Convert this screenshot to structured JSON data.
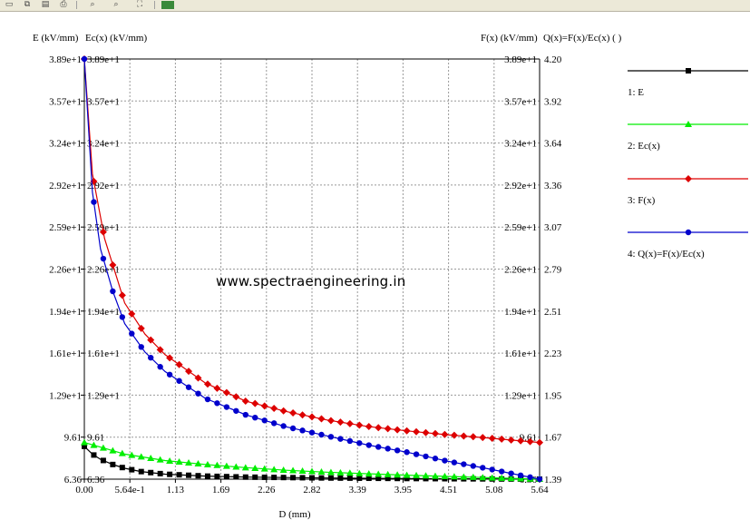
{
  "toolbar": {
    "buttons": [
      {
        "icon": "new-doc-icon"
      },
      {
        "icon": "copy-icon"
      },
      {
        "icon": "paste-icon"
      },
      {
        "icon": "print-icon"
      },
      {
        "icon": "zoom-in-icon"
      },
      {
        "icon": "zoom-out-icon"
      },
      {
        "icon": "zoom-fit-icon"
      },
      {
        "icon": "color-settings-icon"
      }
    ]
  },
  "watermark": "www.spectraengineering.in",
  "chart_data": {
    "type": "line",
    "xlabel": "D (mm)",
    "left_axis_labels": [
      "E (kV/mm)",
      "Ec(x) (kV/mm)"
    ],
    "right_axis_labels": [
      "F(x) (kV/mm)",
      "Q(x)=F(x)/Ec(x) ( )"
    ],
    "xlim": [
      0,
      5.64
    ],
    "ylim": [
      6.36,
      38.9
    ],
    "q_lim": [
      1.39,
      4.2
    ],
    "x_ticks": [
      "0.00",
      "5.64e-1",
      "1.13",
      "1.69",
      "2.26",
      "2.82",
      "3.39",
      "3.95",
      "4.51",
      "5.08",
      "5.64"
    ],
    "y_ticks": [
      "6.36",
      "9.61",
      "1.29e+1",
      "1.61e+1",
      "1.94e+1",
      "2.26e+1",
      "2.59e+1",
      "2.92e+1",
      "3.24e+1",
      "3.57e+1",
      "3.89e+1"
    ],
    "q_ticks": [
      "1.39",
      "1.67",
      "1.95",
      "2.23",
      "2.51",
      "2.79",
      "3.07",
      "3.36",
      "3.64",
      "3.92",
      "4.20"
    ],
    "grid": true,
    "legend_position": "right",
    "series": [
      {
        "name": "1: E",
        "color": "#000000",
        "marker": "square",
        "axis": "left",
        "x": [
          0,
          0.1,
          0.2,
          0.35,
          0.5,
          0.7,
          1.0,
          1.5,
          2.0,
          3.0,
          4.0,
          5.0,
          5.64
        ],
        "values": [
          8.9,
          8.3,
          7.9,
          7.5,
          7.2,
          6.95,
          6.75,
          6.6,
          6.52,
          6.45,
          6.41,
          6.38,
          6.36
        ]
      },
      {
        "name": "2: Ec(x)",
        "color": "#00ee00",
        "marker": "triangle",
        "axis": "left",
        "x": [
          0,
          0.5,
          1.0,
          1.5,
          2.0,
          2.5,
          3.0,
          3.5,
          4.0,
          4.5,
          5.0,
          5.64
        ],
        "values": [
          9.2,
          8.3,
          7.8,
          7.5,
          7.25,
          7.05,
          6.9,
          6.78,
          6.67,
          6.57,
          6.47,
          6.36
        ]
      },
      {
        "name": "3: F(x)",
        "color": "#dd0000",
        "marker": "diamond",
        "axis": "left",
        "x": [
          0,
          0.1,
          0.25,
          0.5,
          0.75,
          1.0,
          1.5,
          2.0,
          2.5,
          3.0,
          3.5,
          4.0,
          4.5,
          5.0,
          5.64
        ],
        "values": [
          38.9,
          30.0,
          25.0,
          20.0,
          17.6,
          16.0,
          13.8,
          12.4,
          11.6,
          10.95,
          10.45,
          10.1,
          9.8,
          9.55,
          9.2
        ]
      },
      {
        "name": "4: Q(x)=F(x)/Ec(x)",
        "color": "#0000cc",
        "marker": "circle",
        "axis": "right",
        "x": [
          0,
          0.1,
          0.2,
          0.35,
          0.5,
          0.75,
          1.0,
          1.5,
          2.0,
          2.5,
          3.0,
          3.5,
          4.0,
          4.5,
          5.0,
          5.64
        ],
        "values": [
          4.2,
          3.31,
          2.93,
          2.65,
          2.43,
          2.24,
          2.11,
          1.93,
          1.82,
          1.74,
          1.68,
          1.62,
          1.57,
          1.51,
          1.46,
          1.39
        ]
      }
    ]
  }
}
